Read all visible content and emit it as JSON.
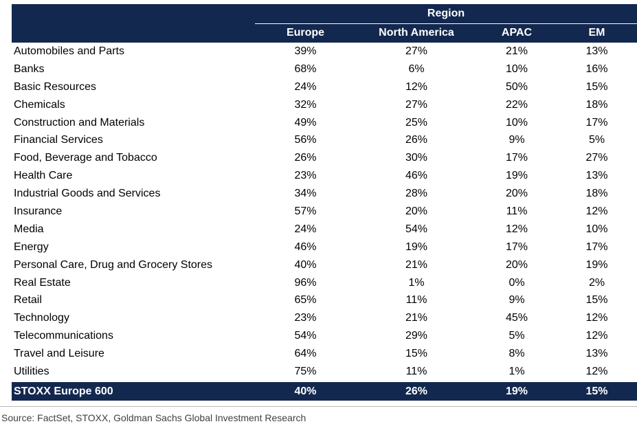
{
  "chart_data": {
    "type": "table",
    "group_header": "Region",
    "columns": [
      "Europe",
      "North America",
      "APAC",
      "EM"
    ],
    "rows": [
      {
        "label": "Automobiles and Parts",
        "values": [
          "39%",
          "27%",
          "21%",
          "13%"
        ]
      },
      {
        "label": "Banks",
        "values": [
          "68%",
          "6%",
          "10%",
          "16%"
        ]
      },
      {
        "label": "Basic Resources",
        "values": [
          "24%",
          "12%",
          "50%",
          "15%"
        ]
      },
      {
        "label": "Chemicals",
        "values": [
          "32%",
          "27%",
          "22%",
          "18%"
        ]
      },
      {
        "label": "Construction and Materials",
        "values": [
          "49%",
          "25%",
          "10%",
          "17%"
        ]
      },
      {
        "label": "Financial Services",
        "values": [
          "56%",
          "26%",
          "9%",
          "5%"
        ]
      },
      {
        "label": "Food, Beverage and Tobacco",
        "values": [
          "26%",
          "30%",
          "17%",
          "27%"
        ]
      },
      {
        "label": "Health Care",
        "values": [
          "23%",
          "46%",
          "19%",
          "13%"
        ]
      },
      {
        "label": "Industrial Goods and Services",
        "values": [
          "34%",
          "28%",
          "20%",
          "18%"
        ]
      },
      {
        "label": "Insurance",
        "values": [
          "57%",
          "20%",
          "11%",
          "12%"
        ]
      },
      {
        "label": "Media",
        "values": [
          "24%",
          "54%",
          "12%",
          "10%"
        ]
      },
      {
        "label": "Energy",
        "values": [
          "46%",
          "19%",
          "17%",
          "17%"
        ]
      },
      {
        "label": "Personal Care, Drug and Grocery Stores",
        "values": [
          "40%",
          "21%",
          "20%",
          "19%"
        ]
      },
      {
        "label": "Real Estate",
        "values": [
          "96%",
          "1%",
          "0%",
          "2%"
        ]
      },
      {
        "label": "Retail",
        "values": [
          "65%",
          "11%",
          "9%",
          "15%"
        ]
      },
      {
        "label": "Technology",
        "values": [
          "23%",
          "21%",
          "45%",
          "12%"
        ]
      },
      {
        "label": "Telecommunications",
        "values": [
          "54%",
          "29%",
          "5%",
          "12%"
        ]
      },
      {
        "label": "Travel and Leisure",
        "values": [
          "64%",
          "15%",
          "8%",
          "13%"
        ]
      },
      {
        "label": "Utilities",
        "values": [
          "75%",
          "11%",
          "1%",
          "12%"
        ]
      }
    ],
    "total": {
      "label": "STOXX Europe 600",
      "values": [
        "40%",
        "26%",
        "19%",
        "15%"
      ]
    }
  },
  "source": "Source: FactSet, STOXX, Goldman Sachs Global Investment Research",
  "colors": {
    "header_bg": "#13284f",
    "header_text": "#ffffff",
    "body_text": "#000000",
    "source_text": "#404040"
  }
}
